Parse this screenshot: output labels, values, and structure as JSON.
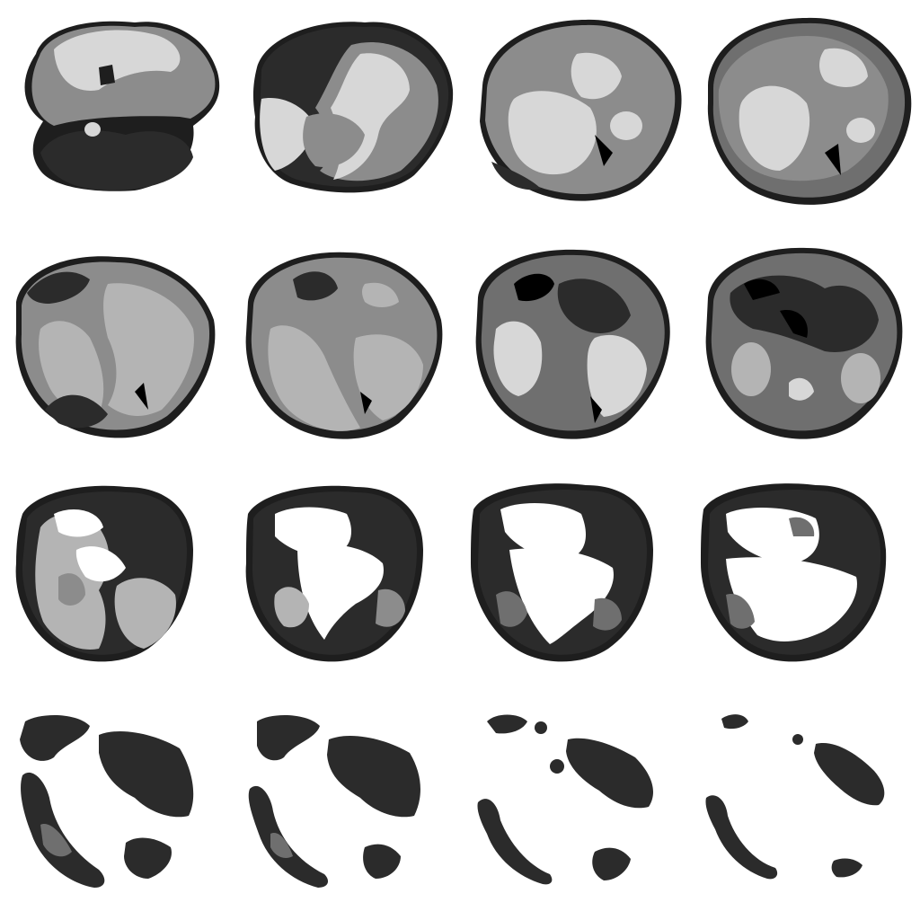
{
  "palette": {
    "background": "#ffffff",
    "edge": "#1e1e1e",
    "dark": "#2b2b2b",
    "mid": "#6f6f6f",
    "mid_light": "#8c8c8c",
    "light": "#b4b4b4",
    "lightest": "#d7d7d7",
    "void": "#000000"
  },
  "grid": {
    "rows": 4,
    "columns": 4
  },
  "slices": [
    {
      "row": 1,
      "col": 1,
      "dark": 0.35,
      "mid": 0.3,
      "light": 0.35,
      "hole": 0.0
    },
    {
      "row": 1,
      "col": 2,
      "dark": 0.3,
      "mid": 0.35,
      "light": 0.35,
      "hole": 0.0
    },
    {
      "row": 1,
      "col": 3,
      "dark": 0.25,
      "mid": 0.45,
      "light": 0.3,
      "hole": 0.0
    },
    {
      "row": 1,
      "col": 4,
      "dark": 0.2,
      "mid": 0.5,
      "light": 0.3,
      "hole": 0.0
    },
    {
      "row": 2,
      "col": 1,
      "dark": 0.2,
      "mid": 0.55,
      "light": 0.25,
      "hole": 0.0
    },
    {
      "row": 2,
      "col": 2,
      "dark": 0.2,
      "mid": 0.55,
      "light": 0.25,
      "hole": 0.0
    },
    {
      "row": 2,
      "col": 3,
      "dark": 0.3,
      "mid": 0.45,
      "light": 0.25,
      "hole": 0.0
    },
    {
      "row": 2,
      "col": 4,
      "dark": 0.4,
      "mid": 0.4,
      "light": 0.2,
      "hole": 0.0
    },
    {
      "row": 3,
      "col": 1,
      "dark": 0.4,
      "mid": 0.35,
      "light": 0.15,
      "hole": 0.1
    },
    {
      "row": 3,
      "col": 2,
      "dark": 0.45,
      "mid": 0.25,
      "light": 0.1,
      "hole": 0.2
    },
    {
      "row": 3,
      "col": 3,
      "dark": 0.55,
      "mid": 0.15,
      "light": 0.05,
      "hole": 0.25
    },
    {
      "row": 3,
      "col": 4,
      "dark": 0.55,
      "mid": 0.15,
      "light": 0.0,
      "hole": 0.3
    },
    {
      "row": 4,
      "col": 1,
      "dark": 0.6,
      "mid": 0.1,
      "light": 0.0,
      "hole": 0.3
    },
    {
      "row": 4,
      "col": 2,
      "dark": 0.6,
      "mid": 0.05,
      "light": 0.0,
      "hole": 0.35
    },
    {
      "row": 4,
      "col": 3,
      "dark": 0.6,
      "mid": 0.0,
      "light": 0.0,
      "hole": 0.4
    },
    {
      "row": 4,
      "col": 4,
      "dark": 0.5,
      "mid": 0.0,
      "light": 0.0,
      "hole": 0.5
    }
  ]
}
